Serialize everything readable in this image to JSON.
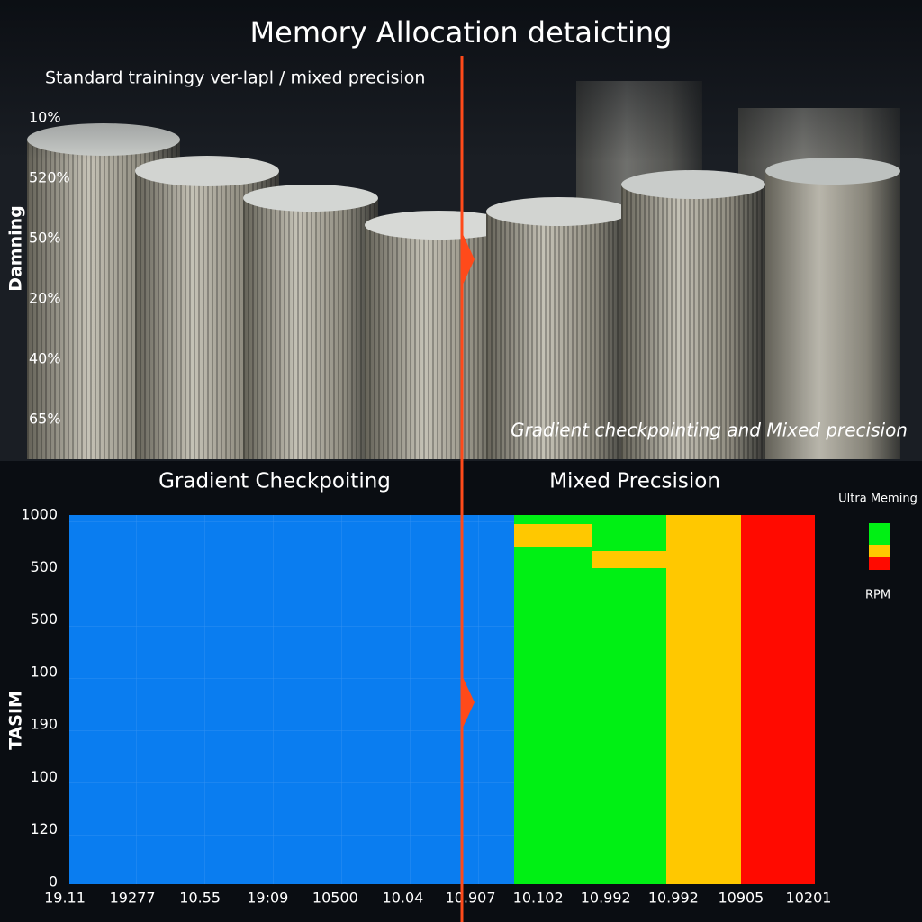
{
  "header": {
    "title": "Memory Allocation detaicting",
    "subtitle": "Standard trainingy ver-lapl / mixed precision"
  },
  "top_panel": {
    "axis_title": "Damning",
    "axis_labels": [
      "10%",
      "520%",
      "50%",
      "20%",
      "40%",
      "65%"
    ],
    "caption": "Gradient checkpointing and Mixed precision"
  },
  "bottom_panel": {
    "left_heading": "Gradient Checkpoiting",
    "right_heading": "Mixed Precsision",
    "axis_title": "TASIM",
    "y_labels": [
      "1000",
      "500",
      "500",
      "100",
      "190",
      "100",
      "120",
      "0"
    ],
    "x_labels": [
      "19.11",
      "19277",
      "10.55",
      "19:09",
      "10500",
      "10.04",
      "10.907",
      "10.102",
      "10.992",
      "10.992",
      "10905",
      "10201"
    ],
    "legend": {
      "title": "Ultra Meming",
      "footer": "RPM"
    }
  }
}
